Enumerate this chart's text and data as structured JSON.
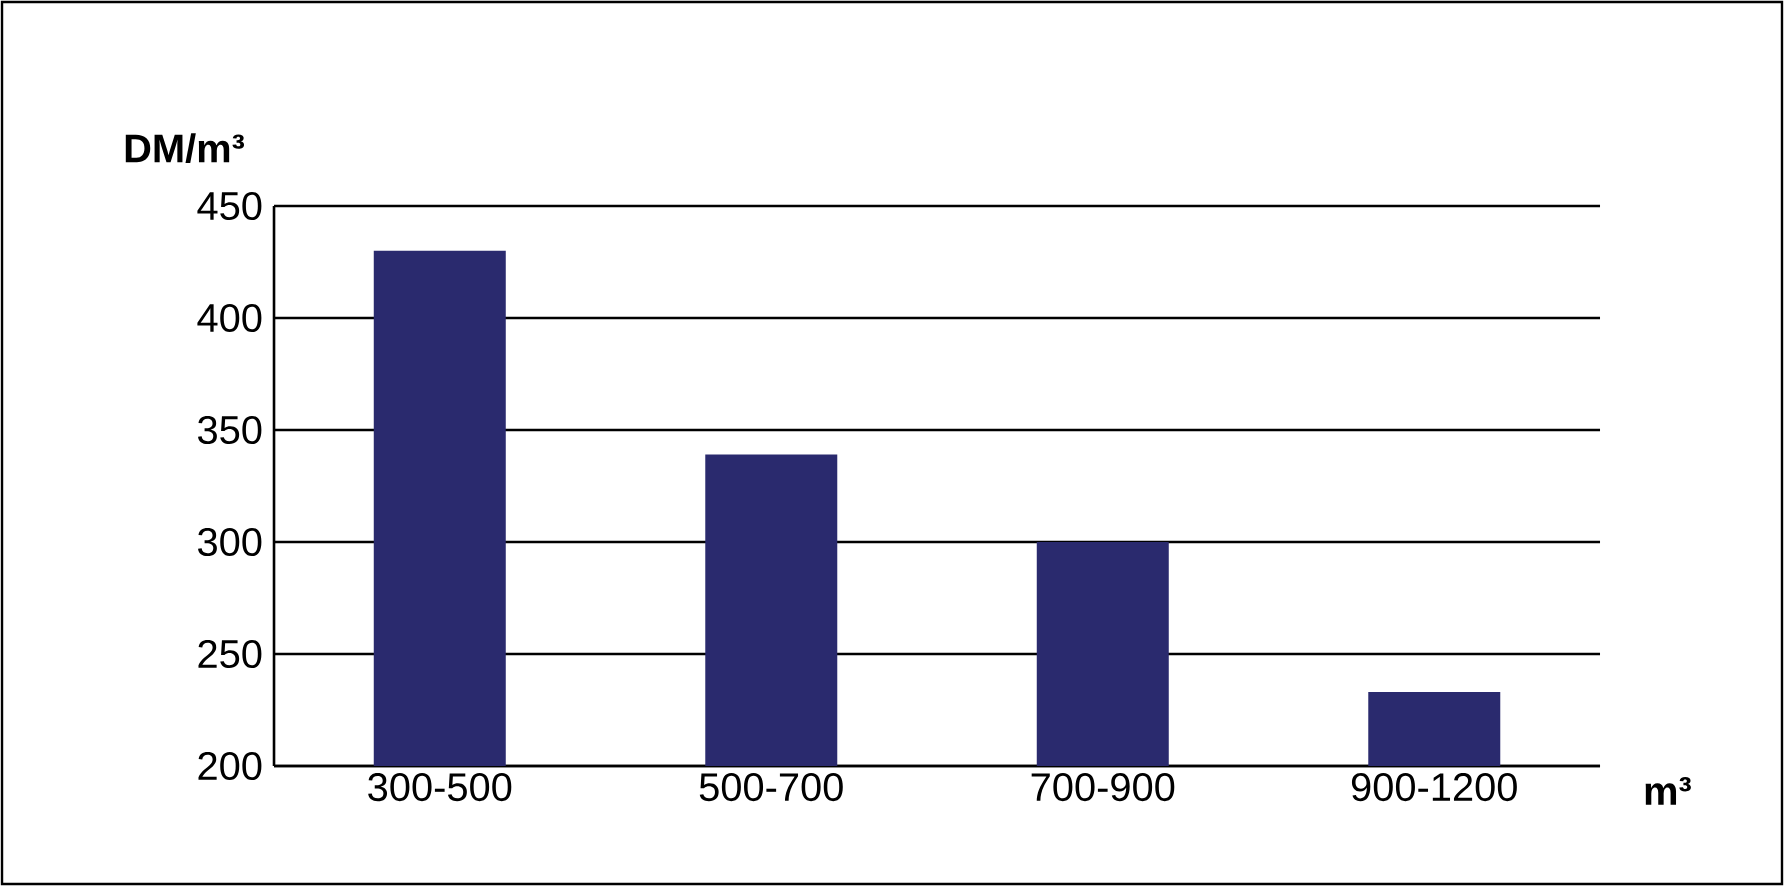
{
  "chart_data": {
    "type": "bar",
    "ylabel": "DM/m³",
    "xlabel": "m³",
    "categories": [
      "300-500",
      "500-700",
      "700-900",
      "900-1200"
    ],
    "values": [
      430,
      339,
      300,
      233
    ],
    "color": "#2a2a6e",
    "ylim": [
      200,
      450
    ],
    "yticks": [
      200,
      250,
      300,
      350,
      400,
      450
    ],
    "grid": "y"
  }
}
